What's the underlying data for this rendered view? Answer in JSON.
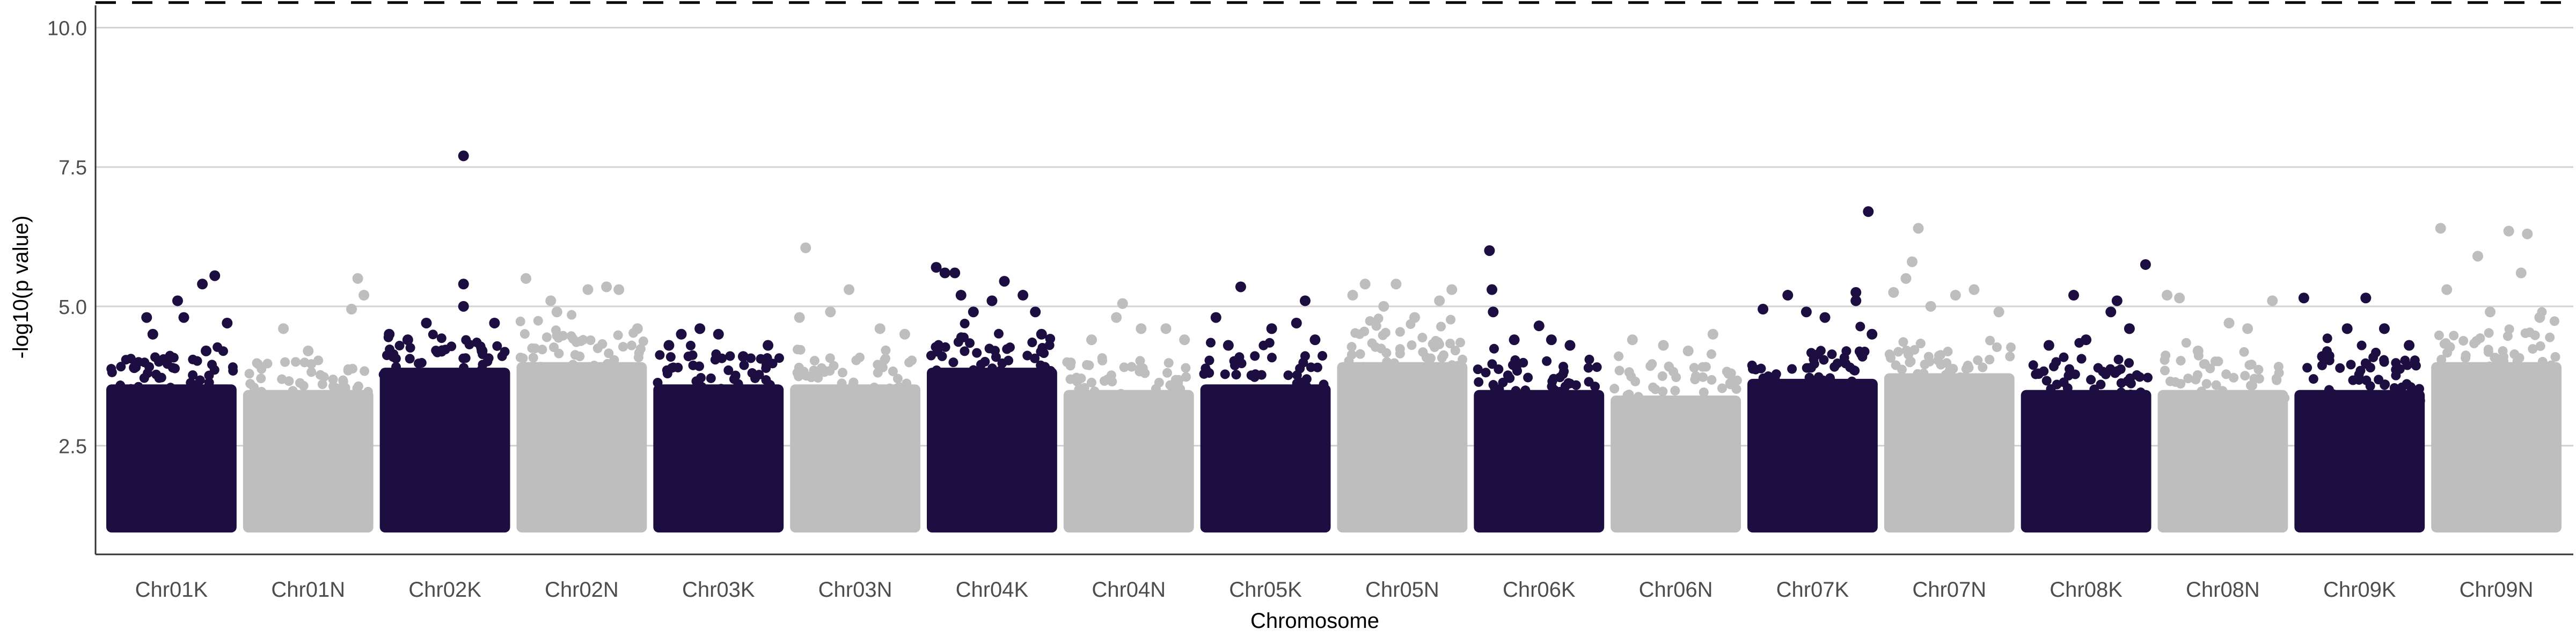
{
  "chart_data": {
    "type": "scatter",
    "xlabel": "Chromosome",
    "ylabel": "-log10(p value)",
    "ylim": [
      0.55,
      10.4
    ],
    "yticks": [
      "2.5",
      "5.0",
      "7.5",
      "10.0"
    ],
    "grid": "horizontal",
    "threshold_line": {
      "y": 10.45,
      "style": "dashed"
    },
    "colors": {
      "odd": "#1c0e40",
      "even": "#bebebe",
      "grid": "#d3d3d3"
    },
    "categories": [
      "Chr01K",
      "Chr01N",
      "Chr02K",
      "Chr02N",
      "Chr03K",
      "Chr03N",
      "Chr04K",
      "Chr04N",
      "Chr05K",
      "Chr05N",
      "Chr06K",
      "Chr06N",
      "Chr07K",
      "Chr07N",
      "Chr08K",
      "Chr08N",
      "Chr09K",
      "Chr09N"
    ],
    "series": [
      {
        "category": "Chr01K",
        "color": "odd",
        "band_max": 3.6,
        "points": [
          [
            0.1,
            3.5
          ],
          [
            0.2,
            3.9
          ],
          [
            0.3,
            4.8
          ],
          [
            0.35,
            4.5
          ],
          [
            0.55,
            5.1
          ],
          [
            0.6,
            4.8
          ],
          [
            0.75,
            5.4
          ],
          [
            0.85,
            5.55
          ],
          [
            0.78,
            4.2
          ],
          [
            0.95,
            4.7
          ]
        ]
      },
      {
        "category": "Chr01N",
        "color": "even",
        "band_max": 3.5,
        "points": [
          [
            0.3,
            4.6
          ],
          [
            0.5,
            4.2
          ],
          [
            0.85,
            4.95
          ],
          [
            0.9,
            5.5
          ],
          [
            0.95,
            5.2
          ]
        ]
      },
      {
        "category": "Chr02K",
        "color": "odd",
        "band_max": 3.9,
        "points": [
          [
            0.05,
            4.5
          ],
          [
            0.2,
            4.4
          ],
          [
            0.35,
            4.7
          ],
          [
            0.65,
            7.7
          ],
          [
            0.65,
            5.4
          ],
          [
            0.65,
            5.0
          ],
          [
            0.8,
            4.2
          ],
          [
            0.9,
            4.7
          ]
        ]
      },
      {
        "category": "Chr02N",
        "color": "even",
        "band_max": 4.0,
        "points": [
          [
            0.05,
            5.5
          ],
          [
            0.25,
            5.1
          ],
          [
            0.3,
            4.9
          ],
          [
            0.55,
            5.3
          ],
          [
            0.7,
            5.35
          ],
          [
            0.8,
            5.3
          ],
          [
            0.95,
            4.6
          ]
        ]
      },
      {
        "category": "Chr03K",
        "color": "odd",
        "band_max": 3.6,
        "points": [
          [
            0.1,
            4.3
          ],
          [
            0.2,
            4.5
          ],
          [
            0.35,
            4.6
          ],
          [
            0.5,
            4.5
          ],
          [
            0.7,
            4.1
          ],
          [
            0.9,
            4.3
          ]
        ]
      },
      {
        "category": "Chr03N",
        "color": "even",
        "band_max": 3.6,
        "points": [
          [
            0.05,
            4.8
          ],
          [
            0.1,
            6.05
          ],
          [
            0.3,
            4.9
          ],
          [
            0.45,
            5.3
          ],
          [
            0.7,
            4.6
          ],
          [
            0.9,
            4.5
          ]
        ]
      },
      {
        "category": "Chr04K",
        "color": "odd",
        "band_max": 3.9,
        "points": [
          [
            0.05,
            5.7
          ],
          [
            0.12,
            5.6
          ],
          [
            0.2,
            5.6
          ],
          [
            0.25,
            5.2
          ],
          [
            0.35,
            4.9
          ],
          [
            0.5,
            5.1
          ],
          [
            0.6,
            5.45
          ],
          [
            0.75,
            5.2
          ],
          [
            0.85,
            4.9
          ],
          [
            0.9,
            4.5
          ]
        ]
      },
      {
        "category": "Chr04N",
        "color": "even",
        "band_max": 3.5,
        "points": [
          [
            0.2,
            4.4
          ],
          [
            0.4,
            4.8
          ],
          [
            0.45,
            5.05
          ],
          [
            0.6,
            4.6
          ],
          [
            0.8,
            4.6
          ],
          [
            0.95,
            4.4
          ]
        ]
      },
      {
        "category": "Chr05K",
        "color": "odd",
        "band_max": 3.6,
        "points": [
          [
            0.1,
            4.8
          ],
          [
            0.2,
            4.3
          ],
          [
            0.3,
            5.35
          ],
          [
            0.55,
            4.6
          ],
          [
            0.75,
            4.7
          ],
          [
            0.82,
            5.1
          ],
          [
            0.9,
            4.4
          ]
        ]
      },
      {
        "category": "Chr05N",
        "color": "even",
        "band_max": 4.0,
        "points": [
          [
            0.1,
            5.2
          ],
          [
            0.2,
            5.4
          ],
          [
            0.35,
            5.0
          ],
          [
            0.45,
            5.4
          ],
          [
            0.6,
            4.8
          ],
          [
            0.8,
            5.1
          ],
          [
            0.9,
            5.3
          ]
        ]
      },
      {
        "category": "Chr06K",
        "color": "odd",
        "band_max": 3.5,
        "points": [
          [
            0.1,
            6.0
          ],
          [
            0.12,
            5.3
          ],
          [
            0.13,
            4.9
          ],
          [
            0.3,
            4.4
          ],
          [
            0.5,
            4.65
          ],
          [
            0.6,
            4.4
          ],
          [
            0.75,
            4.3
          ]
        ]
      },
      {
        "category": "Chr06N",
        "color": "even",
        "band_max": 3.4,
        "points": [
          [
            0.15,
            4.4
          ],
          [
            0.4,
            4.3
          ],
          [
            0.6,
            4.2
          ],
          [
            0.8,
            4.5
          ]
        ]
      },
      {
        "category": "Chr07K",
        "color": "odd",
        "band_max": 3.7,
        "points": [
          [
            0.1,
            4.95
          ],
          [
            0.3,
            5.2
          ],
          [
            0.45,
            4.9
          ],
          [
            0.6,
            4.8
          ],
          [
            0.85,
            5.25
          ],
          [
            0.85,
            5.1
          ],
          [
            0.95,
            6.7
          ],
          [
            0.98,
            4.5
          ]
        ]
      },
      {
        "category": "Chr07N",
        "color": "even",
        "band_max": 3.8,
        "points": [
          [
            0.05,
            5.25
          ],
          [
            0.15,
            5.5
          ],
          [
            0.2,
            5.8
          ],
          [
            0.25,
            6.4
          ],
          [
            0.35,
            5.0
          ],
          [
            0.55,
            5.2
          ],
          [
            0.7,
            5.3
          ],
          [
            0.9,
            4.9
          ]
        ]
      },
      {
        "category": "Chr08K",
        "color": "odd",
        "band_max": 3.5,
        "points": [
          [
            0.2,
            4.3
          ],
          [
            0.4,
            5.2
          ],
          [
            0.5,
            4.4
          ],
          [
            0.7,
            4.9
          ],
          [
            0.75,
            5.1
          ],
          [
            0.85,
            4.6
          ],
          [
            0.98,
            5.75
          ]
        ]
      },
      {
        "category": "Chr08N",
        "color": "even",
        "band_max": 3.5,
        "points": [
          [
            0.05,
            5.2
          ],
          [
            0.15,
            5.15
          ],
          [
            0.3,
            4.2
          ],
          [
            0.55,
            4.7
          ],
          [
            0.7,
            4.6
          ],
          [
            0.9,
            5.1
          ]
        ]
      },
      {
        "category": "Chr09K",
        "color": "odd",
        "band_max": 3.5,
        "points": [
          [
            0.05,
            5.15
          ],
          [
            0.2,
            4.1
          ],
          [
            0.4,
            4.6
          ],
          [
            0.55,
            5.15
          ],
          [
            0.7,
            4.6
          ],
          [
            0.9,
            4.3
          ]
        ]
      },
      {
        "category": "Chr09N",
        "color": "even",
        "band_max": 4.0,
        "points": [
          [
            0.05,
            6.4
          ],
          [
            0.1,
            5.3
          ],
          [
            0.35,
            5.9
          ],
          [
            0.45,
            4.9
          ],
          [
            0.6,
            6.35
          ],
          [
            0.7,
            5.6
          ],
          [
            0.75,
            6.3
          ],
          [
            0.85,
            4.8
          ]
        ]
      }
    ]
  }
}
